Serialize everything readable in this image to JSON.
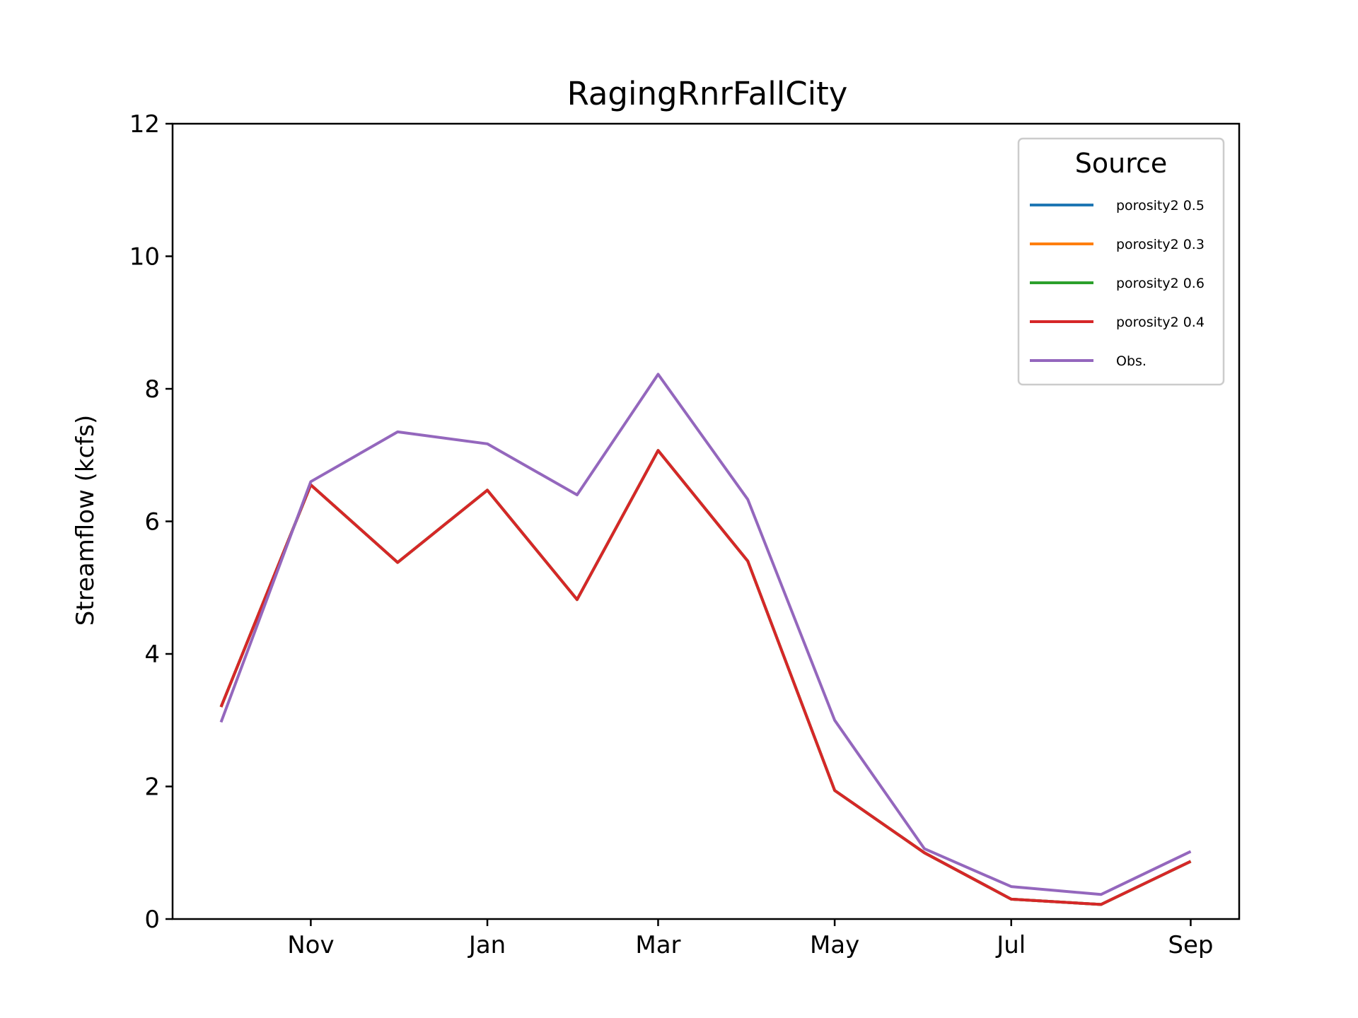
{
  "chart_data": {
    "type": "line",
    "title": "RagingRnrFallCity",
    "xlabel": "",
    "ylabel": "Streamflow (kcfs)",
    "ylim": [
      0,
      12
    ],
    "yticks": [
      0,
      2,
      4,
      6,
      8,
      10,
      12
    ],
    "x_tick_labels": [
      "Nov",
      "Jan",
      "Mar",
      "May",
      "Jul",
      "Sep"
    ],
    "x": [
      "2000-10-01",
      "2000-11-01",
      "2000-12-01",
      "2001-01-01",
      "2001-02-01",
      "2001-03-01",
      "2001-04-01",
      "2001-05-01",
      "2001-06-01",
      "2001-07-01",
      "2001-08-01",
      "2001-09-01"
    ],
    "grid": false,
    "legend": {
      "title": "Source",
      "position": "top-right"
    },
    "series": [
      {
        "name": "porosity2 0.5",
        "color": "#1f77b4",
        "values": [
          3.2,
          6.55,
          5.38,
          6.47,
          4.82,
          7.07,
          5.4,
          1.94,
          1.0,
          0.3,
          0.22,
          0.87
        ]
      },
      {
        "name": "porosity2 0.3",
        "color": "#ff7f0e",
        "values": [
          3.2,
          6.55,
          5.38,
          6.47,
          4.82,
          7.07,
          5.4,
          1.94,
          1.0,
          0.3,
          0.22,
          0.87
        ]
      },
      {
        "name": "porosity2 0.6",
        "color": "#2ca02c",
        "values": [
          3.2,
          6.55,
          5.38,
          6.47,
          4.82,
          7.07,
          5.4,
          1.94,
          1.0,
          0.3,
          0.22,
          0.87
        ]
      },
      {
        "name": "porosity2 0.4",
        "color": "#d62728",
        "values": [
          3.2,
          6.55,
          5.38,
          6.47,
          4.82,
          7.07,
          5.4,
          1.94,
          1.0,
          0.3,
          0.22,
          0.87
        ]
      },
      {
        "name": "Obs.",
        "color": "#9467bd",
        "values": [
          2.97,
          6.6,
          7.35,
          7.17,
          6.4,
          8.22,
          6.33,
          3.0,
          1.06,
          0.49,
          0.37,
          1.02
        ]
      }
    ]
  }
}
